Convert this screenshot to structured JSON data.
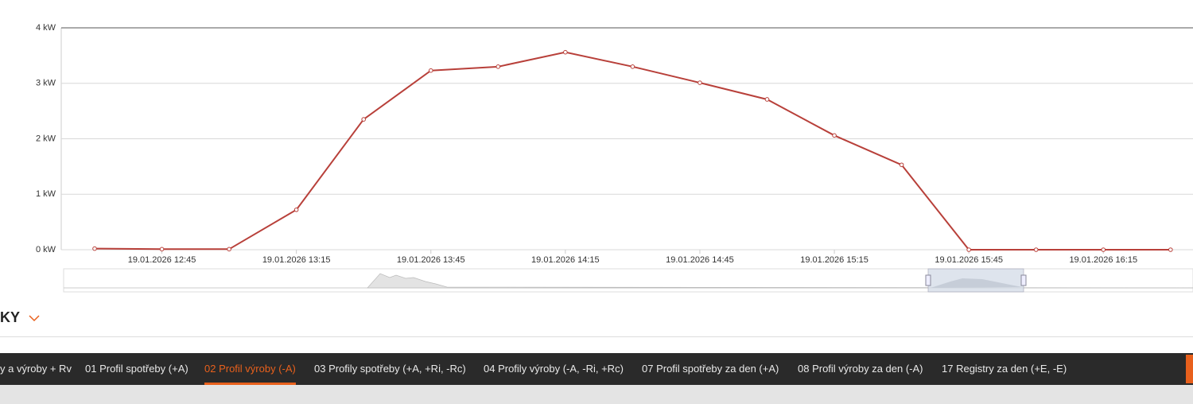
{
  "chart_data": {
    "type": "line",
    "x": [
      "2026-01-19T12:30",
      "2026-01-19T12:45",
      "2026-01-19T13:00",
      "2026-01-19T13:15",
      "2026-01-19T13:30",
      "2026-01-19T13:45",
      "2026-01-19T14:00",
      "2026-01-19T14:15",
      "2026-01-19T14:30",
      "2026-01-19T14:45",
      "2026-01-19T15:00",
      "2026-01-19T15:15",
      "2026-01-19T15:30",
      "2026-01-19T15:45",
      "2026-01-19T16:00",
      "2026-01-19T16:15",
      "2026-01-19T16:30"
    ],
    "series": [
      {
        "color": "#b8403a",
        "values": [
          0.02,
          0.01,
          0.01,
          0.72,
          2.35,
          3.23,
          3.3,
          3.56,
          3.3,
          3.01,
          2.71,
          2.06,
          1.53,
          0,
          0,
          0,
          0
        ]
      }
    ],
    "xlim": [
      "2026-01-19T12:22:33",
      "2026-01-19T16:35"
    ],
    "xticks": [
      {
        "value": "2026-01-19T12:45",
        "label": "19.01.2026 12:45"
      },
      {
        "value": "2026-01-19T13:15",
        "label": "19.01.2026 13:15"
      },
      {
        "value": "2026-01-19T13:45",
        "label": "19.01.2026 13:45"
      },
      {
        "value": "2026-01-19T14:15",
        "label": "19.01.2026 14:15"
      },
      {
        "value": "2026-01-19T14:45",
        "label": "19.01.2026 14:45"
      },
      {
        "value": "2026-01-19T15:15",
        "label": "19.01.2026 15:15"
      },
      {
        "value": "2026-01-19T15:45",
        "label": "19.01.2026 15:45"
      },
      {
        "value": "2026-01-19T16:15",
        "label": "19.01.2026 16:15"
      }
    ],
    "ylim": [
      0,
      4
    ],
    "yticks": [
      {
        "value": 0,
        "label": "0 kW"
      },
      {
        "value": 1,
        "label": "1 kW"
      },
      {
        "value": 2,
        "label": "2 kW"
      },
      {
        "value": 3,
        "label": "3 kW"
      },
      {
        "value": 4,
        "label": "4 kW"
      }
    ],
    "grid": true
  },
  "section": {
    "title": "KY"
  },
  "tabs": [
    "y a výroby + Rv",
    "01 Profil spotřeby (+A)",
    "02 Profil výroby (-A)",
    "03 Profily spotřeby (+A, +Ri, -Rc)",
    "04 Profily výroby (-A, -Ri, +Rc)",
    "07 Profil spotřeby za den (+A)",
    "08 Profil výroby za den (-A)",
    "17 Registry za den (+E, -E)"
  ],
  "active_tab": 2
}
